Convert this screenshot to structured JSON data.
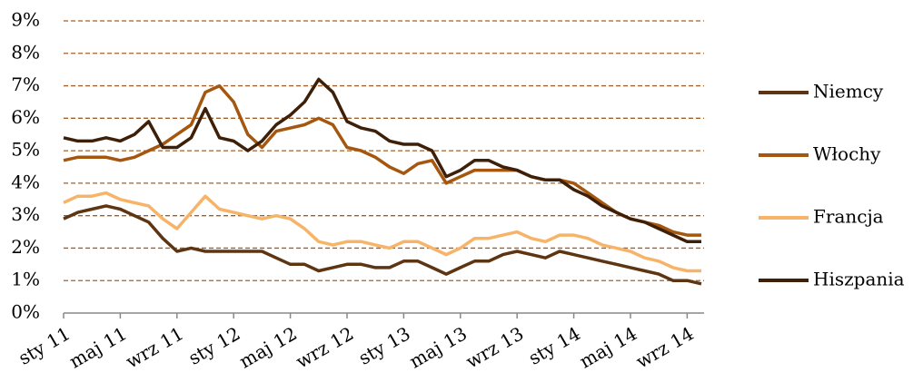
{
  "chart_data": {
    "type": "line",
    "categories": [
      "sty 11",
      null,
      null,
      null,
      "maj 11",
      null,
      null,
      null,
      "wrz 11",
      null,
      null,
      null,
      "sty 12",
      null,
      null,
      null,
      "maj 12",
      null,
      null,
      null,
      "wrz 12",
      null,
      null,
      null,
      "sty 13",
      null,
      null,
      null,
      "maj 13",
      null,
      null,
      null,
      "wrz 13",
      null,
      null,
      null,
      "sty 14",
      null,
      null,
      null,
      "maj 14",
      null,
      null,
      null,
      "wrz 14",
      null
    ],
    "series": [
      {
        "name": "Niemcy",
        "color": "#5e3512",
        "values": [
          2.9,
          3.1,
          3.2,
          3.3,
          3.2,
          3.0,
          2.8,
          2.3,
          1.9,
          2.0,
          1.9,
          1.9,
          1.9,
          1.9,
          1.9,
          1.7,
          1.5,
          1.5,
          1.3,
          1.4,
          1.5,
          1.5,
          1.4,
          1.4,
          1.6,
          1.6,
          1.4,
          1.2,
          1.4,
          1.6,
          1.6,
          1.8,
          1.9,
          1.8,
          1.7,
          1.9,
          1.8,
          1.7,
          1.6,
          1.5,
          1.4,
          1.3,
          1.2,
          1.0,
          1.0,
          0.9
        ]
      },
      {
        "name": "Włochy",
        "color": "#a5560f",
        "values": [
          4.7,
          4.8,
          4.8,
          4.8,
          4.7,
          4.8,
          5.0,
          5.2,
          5.5,
          5.8,
          6.8,
          7.0,
          6.5,
          5.5,
          5.1,
          5.6,
          5.7,
          5.8,
          6.0,
          5.8,
          5.1,
          5.0,
          4.8,
          4.5,
          4.3,
          4.6,
          4.7,
          4.0,
          4.2,
          4.4,
          4.4,
          4.4,
          4.4,
          4.2,
          4.1,
          4.1,
          4.0,
          3.7,
          3.4,
          3.1,
          2.9,
          2.8,
          2.7,
          2.5,
          2.4,
          2.4
        ]
      },
      {
        "name": "Francja",
        "color": "#f7b469",
        "values": [
          3.4,
          3.6,
          3.6,
          3.7,
          3.5,
          3.4,
          3.3,
          2.9,
          2.6,
          3.1,
          3.6,
          3.2,
          3.1,
          3.0,
          2.9,
          3.0,
          2.9,
          2.6,
          2.2,
          2.1,
          2.2,
          2.2,
          2.1,
          2.0,
          2.2,
          2.2,
          2.0,
          1.8,
          2.0,
          2.3,
          2.3,
          2.4,
          2.5,
          2.3,
          2.2,
          2.4,
          2.4,
          2.3,
          2.1,
          2.0,
          1.9,
          1.7,
          1.6,
          1.4,
          1.3,
          1.3
        ]
      },
      {
        "name": "Hiszpania",
        "color": "#3e1f07",
        "values": [
          5.4,
          5.3,
          5.3,
          5.4,
          5.3,
          5.5,
          5.9,
          5.1,
          5.1,
          5.4,
          6.3,
          5.4,
          5.3,
          5.0,
          5.3,
          5.8,
          6.1,
          6.5,
          7.2,
          6.8,
          5.9,
          5.7,
          5.6,
          5.3,
          5.2,
          5.2,
          5.0,
          4.2,
          4.4,
          4.7,
          4.7,
          4.5,
          4.4,
          4.2,
          4.1,
          4.1,
          3.8,
          3.6,
          3.3,
          3.1,
          2.9,
          2.8,
          2.6,
          2.4,
          2.2,
          2.2
        ]
      }
    ],
    "ylim": [
      0,
      9
    ],
    "yticks": [
      {
        "value": 0,
        "label": "0%"
      },
      {
        "value": 1,
        "label": "1%"
      },
      {
        "value": 2,
        "label": "2%"
      },
      {
        "value": 3,
        "label": "3%"
      },
      {
        "value": 4,
        "label": "4%"
      },
      {
        "value": 5,
        "label": "5%"
      },
      {
        "value": 6,
        "label": "6%"
      },
      {
        "value": 7,
        "label": "7%"
      },
      {
        "value": 8,
        "label": "8%"
      },
      {
        "value": 9,
        "label": "9%"
      }
    ],
    "grid": true,
    "legend": "right"
  }
}
